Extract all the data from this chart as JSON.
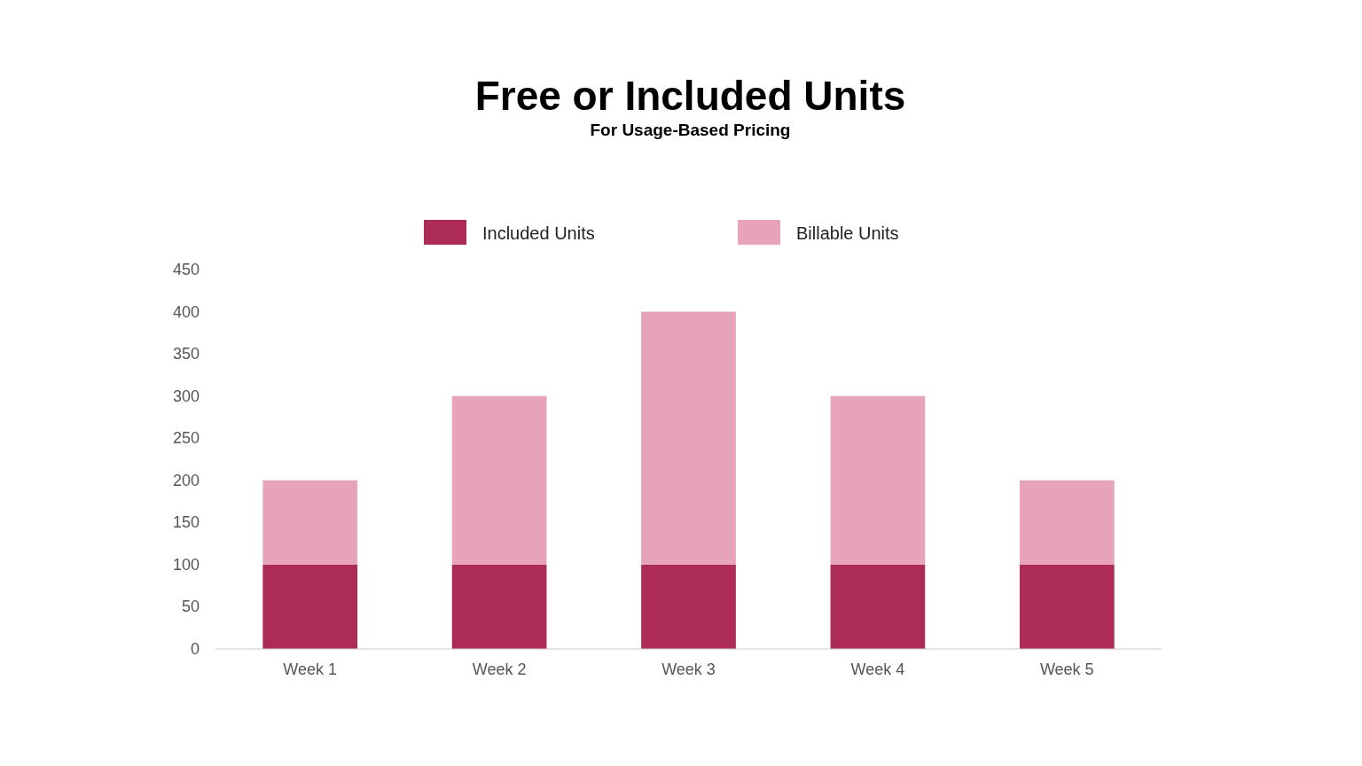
{
  "chart_data": {
    "type": "bar",
    "title": "Free or Included Units",
    "subtitle": "For Usage-Based Pricing",
    "categories": [
      "Week 1",
      "Week 2",
      "Week 3",
      "Week 4",
      "Week 5"
    ],
    "series": [
      {
        "name": "Included Units",
        "color": "#ad2c57",
        "values": [
          100,
          100,
          100,
          100,
          100
        ]
      },
      {
        "name": "Billable Units",
        "color": "#e7a4b9",
        "values": [
          100,
          200,
          300,
          200,
          100
        ]
      }
    ],
    "stacked": true,
    "ylim": [
      0,
      450
    ],
    "yticks": [
      0,
      50,
      100,
      150,
      200,
      250,
      300,
      350,
      400,
      450
    ],
    "grid": false,
    "legend": "top"
  }
}
